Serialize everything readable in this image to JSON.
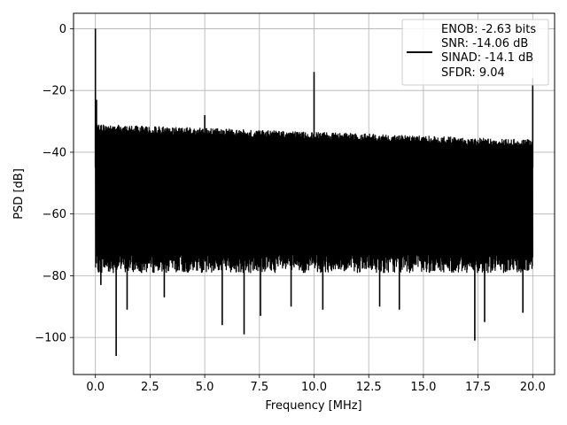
{
  "chart_data": {
    "type": "line",
    "xlabel": "Frequency [MHz]",
    "ylabel": "PSD [dB]",
    "xlim": [
      -1.0,
      21.0
    ],
    "ylim": [
      -112,
      5
    ],
    "xticks": [
      0.0,
      2.5,
      5.0,
      7.5,
      10.0,
      12.5,
      15.0,
      17.5,
      20.0
    ],
    "xtick_labels": [
      "0.0",
      "2.5",
      "5.0",
      "7.5",
      "10.0",
      "12.5",
      "15.0",
      "17.5",
      "20.0"
    ],
    "yticks": [
      0,
      -20,
      -40,
      -60,
      -80,
      -100
    ],
    "ytick_labels": [
      "0",
      "−20",
      "−40",
      "−60",
      "−80",
      "−100"
    ],
    "grid": true,
    "legend_position": "top-right",
    "legend_lines": [
      "ENOB: -2.63 bits",
      "SNR: -14.06 dB",
      "SINAD: -14.1 dB",
      "SFDR: 9.04"
    ],
    "series_color": "#000000",
    "noise_floor": {
      "upper_envelope_start": -31,
      "upper_envelope_end": -36,
      "lower_envelope": -76
    },
    "peaks": [
      {
        "x": 0.0,
        "y": 0
      },
      {
        "x": 0.05,
        "y": -23
      },
      {
        "x": 5.0,
        "y": -28
      },
      {
        "x": 10.0,
        "y": -14
      },
      {
        "x": 20.0,
        "y": -16
      }
    ],
    "dips": [
      {
        "x": 0.25,
        "y": -83
      },
      {
        "x": 0.95,
        "y": -106
      },
      {
        "x": 1.45,
        "y": -91
      },
      {
        "x": 3.15,
        "y": -87
      },
      {
        "x": 5.8,
        "y": -96
      },
      {
        "x": 6.8,
        "y": -99
      },
      {
        "x": 7.55,
        "y": -93
      },
      {
        "x": 8.95,
        "y": -90
      },
      {
        "x": 10.4,
        "y": -91
      },
      {
        "x": 13.0,
        "y": -90
      },
      {
        "x": 13.9,
        "y": -91
      },
      {
        "x": 17.35,
        "y": -101
      },
      {
        "x": 17.8,
        "y": -95
      },
      {
        "x": 19.55,
        "y": -92
      }
    ]
  }
}
